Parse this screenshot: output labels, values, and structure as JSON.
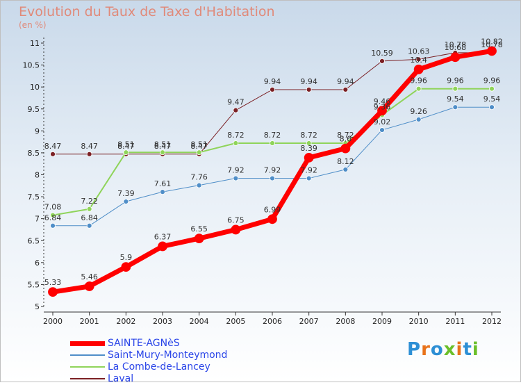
{
  "title": "Evolution du Taux de Taxe d'Habitation",
  "unit_label": "(en %)",
  "brand": {
    "text": "Proxiti",
    "letters": [
      "P",
      "r",
      "o",
      "x",
      "i",
      "t",
      "i"
    ],
    "colors": [
      "#2d8fd5",
      "#e8721a",
      "#2d8fd5",
      "#6bbf2a",
      "#e8721a",
      "#2d8fd5",
      "#6bbf2a"
    ]
  },
  "chart_data": {
    "type": "line",
    "title": "Evolution du Taux de Taxe d'Habitation",
    "ylabel": "(en %)",
    "x": [
      2000,
      2001,
      2002,
      2003,
      2004,
      2005,
      2006,
      2007,
      2008,
      2009,
      2010,
      2011,
      2012
    ],
    "ylim": [
      5,
      11
    ],
    "yticks": [
      5,
      5.5,
      6,
      6.5,
      7,
      7.5,
      8,
      8.5,
      9,
      9.5,
      10,
      10.5,
      11
    ],
    "ytick_labels": [
      "5",
      "5.5",
      "6",
      "6.5",
      "7",
      "7.5",
      "8",
      "8.5",
      "9",
      "9.5",
      "10",
      "10.5",
      "11"
    ],
    "grid": false,
    "legend_position": "bottom-left",
    "series": [
      {
        "name": "SAINTE-AGNèS",
        "color": "#ff0000",
        "width": 7,
        "values": [
          5.33,
          5.46,
          5.9,
          6.37,
          6.55,
          6.75,
          6.99,
          8.39,
          8.6,
          9.46,
          10.4,
          10.68,
          10.82
        ],
        "labels": [
          "5.33",
          "5.46",
          "5.9",
          "6.37",
          "6.55",
          "6.75",
          "6.99",
          "8.39",
          "8.6",
          "9.46",
          "10.4",
          "10.68",
          "10.82"
        ]
      },
      {
        "name": "Saint-Mury-Monteymond",
        "color": "#4f8ec8",
        "width": 1,
        "values": [
          6.84,
          6.84,
          7.39,
          7.61,
          7.76,
          7.92,
          7.92,
          7.92,
          8.12,
          9.02,
          9.26,
          9.54,
          9.54
        ],
        "labels": [
          "6.84",
          "6.84",
          "7.39",
          "7.61",
          "7.76",
          "7.92",
          "7.92",
          "7.92",
          "8.12",
          "9.02",
          "9.26",
          "9.54",
          "9.54"
        ]
      },
      {
        "name": "La Combe-de-Lancey",
        "color": "#8fd45a",
        "width": 2,
        "values": [
          7.08,
          7.22,
          8.51,
          8.51,
          8.51,
          8.72,
          8.72,
          8.72,
          8.72,
          9.36,
          9.96,
          9.96,
          9.96
        ],
        "labels": [
          "7.08",
          "7.22",
          "8.51",
          "8.51",
          "8.51",
          "8.72",
          "8.72",
          "8.72",
          "8.72",
          "9.36",
          "9.96",
          "9.96",
          "9.96"
        ]
      },
      {
        "name": "Laval",
        "color": "#7b2024",
        "width": 1,
        "values": [
          8.47,
          8.47,
          8.47,
          8.47,
          8.47,
          9.47,
          9.94,
          9.94,
          9.94,
          10.59,
          10.63,
          10.78,
          10.78
        ],
        "labels": [
          "8.47",
          "8.47",
          "8.47",
          "8.47",
          "8.47",
          "9.47",
          "9.94",
          "9.94",
          "9.94",
          "10.59",
          "10.63",
          "10.78",
          "10.78"
        ]
      }
    ]
  }
}
